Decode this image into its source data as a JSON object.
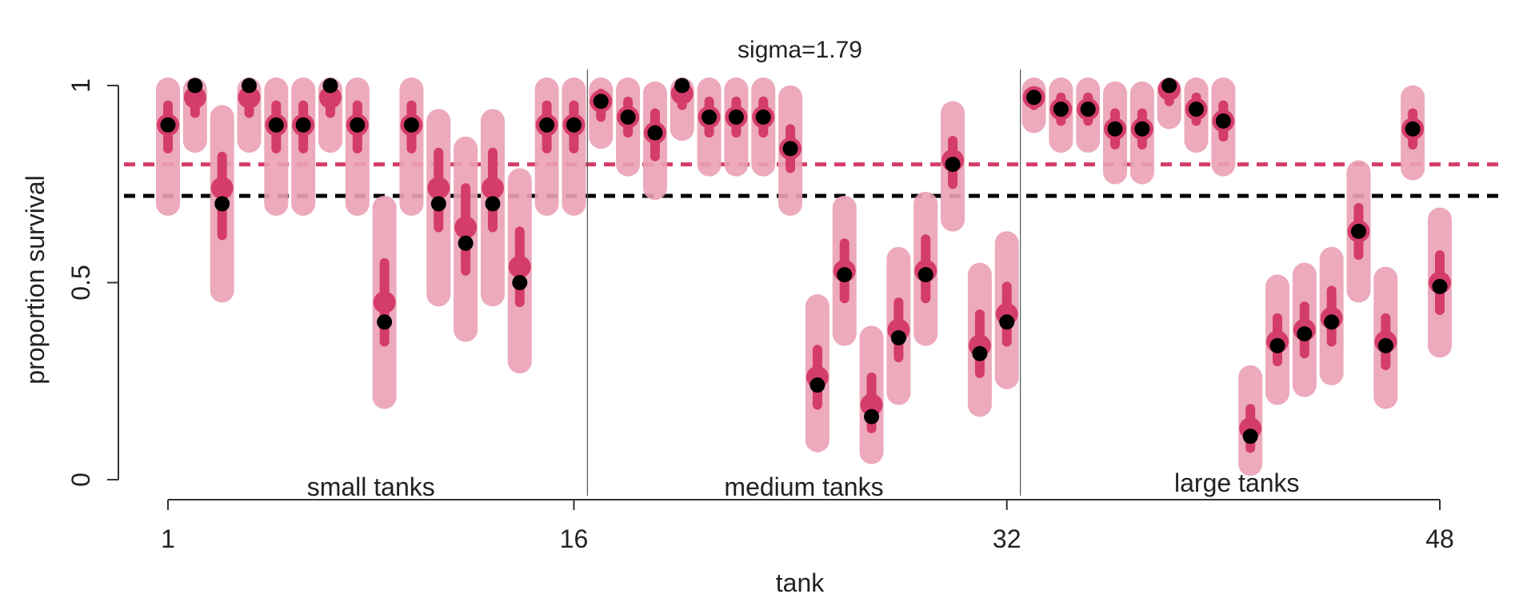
{
  "chart_data": {
    "type": "scatter",
    "title": "sigma=1.79",
    "xlabel": "tank",
    "ylabel": "proportion survival",
    "xlim": [
      1,
      48
    ],
    "ylim": [
      0,
      1
    ],
    "x_ticks": [
      "1",
      "16",
      "32",
      "48"
    ],
    "y_ticks": [
      "0",
      "0.5",
      "1"
    ],
    "groups": [
      "small tanks",
      "medium tanks",
      "large tanks"
    ],
    "group_dividers": [
      16.5,
      32.5
    ],
    "reference_lines": [
      {
        "y": 0.8,
        "color": "#d43d6a",
        "style": "dashed"
      },
      {
        "y": 0.72,
        "color": "#000000",
        "style": "dashed"
      }
    ],
    "colors": {
      "posterior": "#d43d6a",
      "interval_wide": "#eba1b5",
      "interval_narrow": "#d43d6a",
      "observed": "#000000"
    },
    "series": [
      {
        "name": "",
        "role": "observed",
        "x": [
          1,
          2,
          3,
          4,
          5,
          6,
          7,
          8,
          9,
          10,
          11,
          12,
          13,
          14,
          15,
          16,
          17,
          18,
          19,
          20,
          21,
          22,
          23,
          24,
          25,
          26,
          27,
          28,
          29,
          30,
          31,
          32,
          33,
          34,
          35,
          36,
          37,
          38,
          39,
          40,
          41,
          42,
          43,
          44,
          45,
          46,
          47,
          48
        ],
        "y": [
          0.9,
          1.0,
          0.7,
          1.0,
          0.9,
          0.9,
          1.0,
          0.9,
          0.4,
          0.9,
          0.7,
          0.6,
          0.7,
          0.5,
          0.9,
          0.9,
          0.96,
          0.92,
          0.88,
          1.0,
          0.92,
          0.92,
          0.92,
          0.84,
          0.24,
          0.52,
          0.16,
          0.36,
          0.52,
          0.8,
          0.32,
          0.4,
          0.97,
          0.94,
          0.94,
          0.89,
          0.89,
          1.0,
          0.94,
          0.91,
          0.11,
          0.34,
          0.37,
          0.4,
          0.63,
          0.34,
          0.89,
          0.49
        ]
      },
      {
        "name": "",
        "role": "posterior",
        "x": [
          1,
          2,
          3,
          4,
          5,
          6,
          7,
          8,
          9,
          10,
          11,
          12,
          13,
          14,
          15,
          16,
          17,
          18,
          19,
          20,
          21,
          22,
          23,
          24,
          25,
          26,
          27,
          28,
          29,
          30,
          31,
          32,
          33,
          34,
          35,
          36,
          37,
          38,
          39,
          40,
          41,
          42,
          43,
          44,
          45,
          46,
          47,
          48
        ],
        "y": [
          0.9,
          0.97,
          0.74,
          0.97,
          0.9,
          0.9,
          0.97,
          0.9,
          0.45,
          0.9,
          0.74,
          0.64,
          0.74,
          0.54,
          0.9,
          0.9,
          0.96,
          0.92,
          0.88,
          0.98,
          0.92,
          0.92,
          0.92,
          0.84,
          0.26,
          0.53,
          0.19,
          0.38,
          0.53,
          0.81,
          0.34,
          0.42,
          0.97,
          0.94,
          0.94,
          0.89,
          0.89,
          0.99,
          0.94,
          0.91,
          0.13,
          0.35,
          0.38,
          0.41,
          0.63,
          0.35,
          0.89,
          0.5
        ],
        "interval_wide_low": [
          0.7,
          0.86,
          0.48,
          0.86,
          0.7,
          0.7,
          0.86,
          0.7,
          0.21,
          0.7,
          0.47,
          0.38,
          0.47,
          0.3,
          0.7,
          0.7,
          0.87,
          0.8,
          0.74,
          0.89,
          0.8,
          0.8,
          0.8,
          0.7,
          0.1,
          0.37,
          0.07,
          0.22,
          0.37,
          0.66,
          0.19,
          0.26,
          0.91,
          0.86,
          0.86,
          0.78,
          0.78,
          0.92,
          0.86,
          0.8,
          0.04,
          0.22,
          0.24,
          0.27,
          0.48,
          0.21,
          0.79,
          0.34
        ],
        "interval_wide_high": [
          0.99,
          0.99,
          0.92,
          0.99,
          0.99,
          0.99,
          0.99,
          0.99,
          0.69,
          0.99,
          0.91,
          0.84,
          0.91,
          0.76,
          0.99,
          0.99,
          0.99,
          0.99,
          0.98,
          0.99,
          0.99,
          0.99,
          0.99,
          0.97,
          0.44,
          0.69,
          0.36,
          0.56,
          0.7,
          0.93,
          0.52,
          0.6,
          0.99,
          0.99,
          0.99,
          0.98,
          0.98,
          0.99,
          0.99,
          0.99,
          0.26,
          0.49,
          0.52,
          0.56,
          0.78,
          0.51,
          0.97,
          0.66
        ],
        "interval_narrow_low": [
          0.84,
          0.93,
          0.62,
          0.93,
          0.84,
          0.84,
          0.93,
          0.84,
          0.35,
          0.84,
          0.64,
          0.53,
          0.64,
          0.45,
          0.84,
          0.84,
          0.92,
          0.88,
          0.82,
          0.95,
          0.88,
          0.88,
          0.88,
          0.79,
          0.19,
          0.46,
          0.13,
          0.31,
          0.46,
          0.75,
          0.27,
          0.35,
          0.95,
          0.91,
          0.91,
          0.85,
          0.85,
          0.96,
          0.91,
          0.87,
          0.08,
          0.3,
          0.32,
          0.35,
          0.57,
          0.29,
          0.85,
          0.43
        ],
        "interval_narrow_high": [
          0.95,
          0.99,
          0.82,
          0.99,
          0.95,
          0.95,
          0.99,
          0.95,
          0.55,
          0.95,
          0.83,
          0.74,
          0.83,
          0.63,
          0.95,
          0.95,
          0.98,
          0.96,
          0.93,
          0.99,
          0.96,
          0.96,
          0.96,
          0.89,
          0.33,
          0.6,
          0.26,
          0.45,
          0.61,
          0.86,
          0.42,
          0.49,
          0.98,
          0.97,
          0.97,
          0.93,
          0.93,
          0.99,
          0.97,
          0.95,
          0.18,
          0.41,
          0.44,
          0.48,
          0.69,
          0.41,
          0.93,
          0.57
        ]
      }
    ]
  }
}
